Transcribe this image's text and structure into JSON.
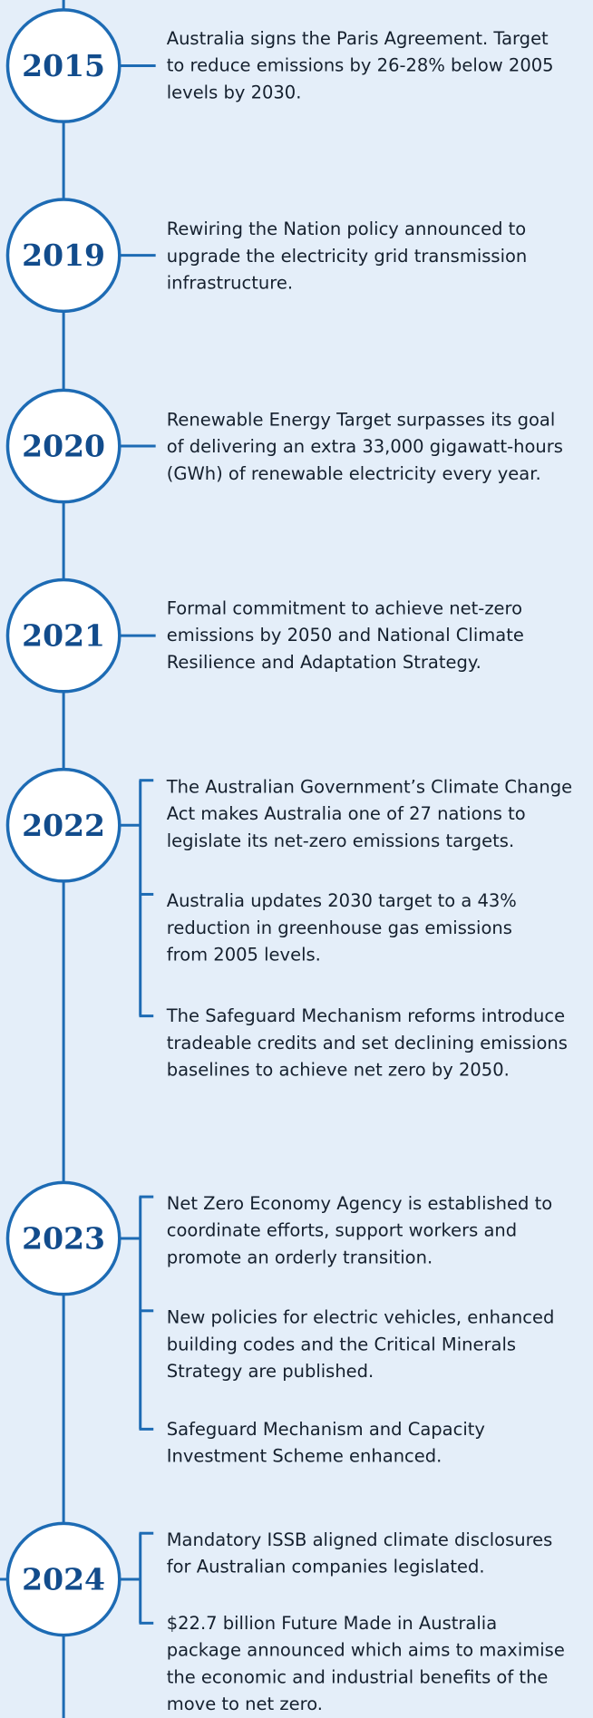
{
  "events": [
    {
      "year": "2015",
      "items": [
        [
          "Australia signs the Paris Agreement. Target",
          "to reduce emissions by 26-28% below 2005",
          "levels by 2030."
        ]
      ]
    },
    {
      "year": "2019",
      "items": [
        [
          "Rewiring the Nation policy announced to",
          "upgrade the electricity grid transmission",
          "infrastructure."
        ]
      ]
    },
    {
      "year": "2020",
      "items": [
        [
          "Renewable Energy Target surpasses its goal",
          "of delivering an extra 33,000 gigawatt-hours",
          "(GWh) of renewable electricity every year."
        ]
      ]
    },
    {
      "year": "2021",
      "items": [
        [
          "Formal commitment to achieve net-zero",
          "emissions by 2050 and National Climate",
          "Resilience and Adaptation Strategy."
        ]
      ]
    },
    {
      "year": "2022",
      "items": [
        [
          "The Australian Government’s Climate Change",
          "Act makes Australia one of 27 nations to",
          "legislate its net-zero emissions targets."
        ],
        [
          "Australia updates 2030 target to a 43%",
          "reduction in greenhouse gas emissions",
          "from 2005 levels."
        ],
        [
          "The Safeguard Mechanism reforms introduce",
          "tradeable credits and set declining emissions",
          "baselines to achieve net zero by 2050."
        ]
      ]
    },
    {
      "year": "2023",
      "items": [
        [
          "Net Zero Economy Agency is established to",
          "coordinate efforts, support workers and",
          "promote an orderly transition."
        ],
        [
          "New policies for electric vehicles, enhanced",
          "building codes and the Critical Minerals",
          "Strategy  are published."
        ],
        [
          "Safeguard Mechanism and Capacity",
          "Investment Scheme enhanced."
        ]
      ]
    },
    {
      "year": "2024",
      "items": [
        [
          "Mandatory ISSB aligned climate disclosures",
          "for Australian companies legislated."
        ],
        [
          "$22.7 billion Future Made in Australia",
          "package announced which aims to maximise",
          "the economic and industrial benefits of the",
          "move to net zero."
        ]
      ]
    }
  ]
}
